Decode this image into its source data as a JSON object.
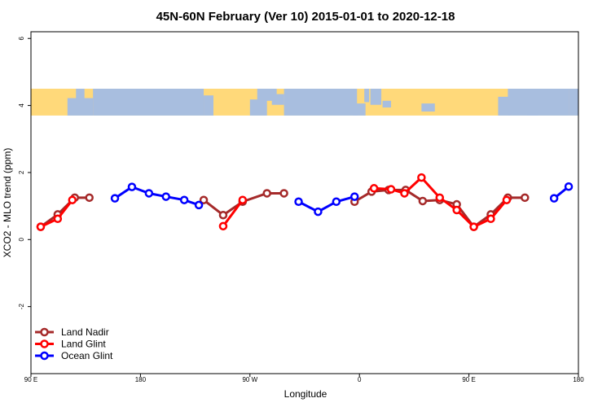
{
  "chart_data": {
    "type": "line",
    "title": "45N-60N February (Ver 10)   2015-01-01 to 2020-12-18",
    "xlabel": "Longitude",
    "ylabel": "XCO2 - MLO trend (ppm)",
    "x_axis": {
      "range_deg_east": [
        90,
        540
      ],
      "ticks": [
        {
          "value": 90,
          "label": "90 E"
        },
        {
          "value": 180,
          "label": "180"
        },
        {
          "value": 270,
          "label": "90 W"
        },
        {
          "value": 360,
          "label": "0"
        },
        {
          "value": 450,
          "label": "90 E"
        },
        {
          "value": 540,
          "label": "180"
        }
      ]
    },
    "y_axis": {
      "range": [
        -4,
        6.2
      ],
      "ticks": [
        {
          "value": -2,
          "label": "-2"
        },
        {
          "value": 0,
          "label": "0"
        },
        {
          "value": 2,
          "label": "2"
        },
        {
          "value": 4,
          "label": "4"
        },
        {
          "value": 6,
          "label": "6"
        }
      ]
    },
    "map_band": {
      "y_top": 4.5,
      "y_bottom": 3.7,
      "land_color": "#FFD97A",
      "ocean_color": "#A8BEDF"
    },
    "grid": false,
    "legend_position": "bottom-left",
    "series": [
      {
        "name": "Land Nadir",
        "color": "#A52A2A",
        "segments": [
          [
            [
              98,
              0.38
            ],
            [
              112,
              0.75
            ],
            [
              126,
              1.25
            ],
            [
              138,
              1.25
            ]
          ],
          [
            [
              232,
              1.18
            ],
            [
              248,
              0.73
            ],
            [
              264,
              1.13
            ],
            [
              284,
              1.38
            ],
            [
              298,
              1.38
            ]
          ],
          [
            [
              356,
              1.13
            ],
            [
              370,
              1.43
            ],
            [
              384,
              1.48
            ],
            [
              398,
              1.48
            ],
            [
              412,
              1.15
            ],
            [
              426,
              1.18
            ],
            [
              440,
              1.05
            ],
            [
              454,
              0.38
            ],
            [
              468,
              0.75
            ],
            [
              482,
              1.25
            ],
            [
              496,
              1.25
            ]
          ]
        ]
      },
      {
        "name": "Land Glint",
        "color": "#FF0000",
        "segments": [
          [
            [
              98,
              0.38
            ],
            [
              112,
              0.62
            ],
            [
              124,
              1.18
            ]
          ],
          [
            [
              248,
              0.4
            ],
            [
              264,
              1.18
            ]
          ],
          [
            [
              372,
              1.53
            ],
            [
              386,
              1.5
            ],
            [
              397,
              1.38
            ],
            [
              411,
              1.85
            ],
            [
              426,
              1.25
            ],
            [
              440,
              0.88
            ],
            [
              454,
              0.38
            ],
            [
              468,
              0.62
            ],
            [
              481,
              1.18
            ]
          ]
        ]
      },
      {
        "name": "Ocean Glint",
        "color": "#0000FF",
        "segments": [
          [
            [
              159,
              1.23
            ],
            [
              173,
              1.57
            ],
            [
              187,
              1.38
            ],
            [
              201,
              1.28
            ],
            [
              216,
              1.18
            ],
            [
              228,
              1.03
            ]
          ],
          [
            [
              310,
              1.13
            ],
            [
              326,
              0.83
            ],
            [
              341,
              1.13
            ],
            [
              356,
              1.28
            ]
          ],
          [
            [
              520,
              1.23
            ],
            [
              532,
              1.58
            ]
          ]
        ]
      }
    ]
  }
}
